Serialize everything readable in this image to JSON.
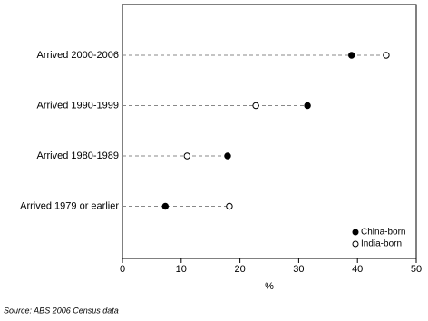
{
  "chart_data": {
    "type": "dot",
    "categories": [
      "Arrived 2000-2006",
      "Arrived 1990-1999",
      "Arrived 1980-1989",
      "Arrived 1979 or earlier"
    ],
    "series": [
      {
        "name": "China-born",
        "color": "#000000",
        "fill": true,
        "values": [
          39.0,
          31.5,
          17.9,
          7.3
        ]
      },
      {
        "name": "India-born",
        "color": "#000000",
        "fill": false,
        "values": [
          44.9,
          22.7,
          11.0,
          18.2
        ]
      }
    ],
    "xlim": [
      0,
      50
    ],
    "xticks": [
      0,
      10,
      20,
      30,
      40,
      50
    ],
    "xlabel": "%",
    "legend": "lower right",
    "source": "Source: ABS 2006 Census data"
  }
}
